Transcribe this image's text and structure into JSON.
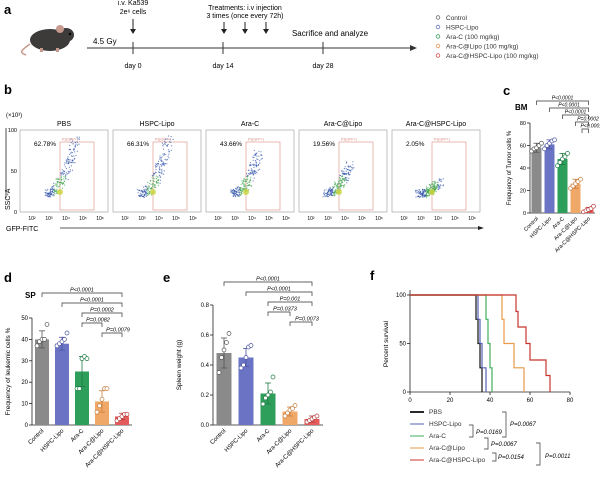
{
  "panel_labels": {
    "a": "a",
    "b": "b",
    "c": "c",
    "d": "d",
    "e": "e",
    "f": "f"
  },
  "timeline": {
    "injection_label_1": "i.v. Ka539",
    "injection_label_2": "2e⁶ cells",
    "irradiation": "4.5 Gy",
    "treatment_label_1": "Treatments: i.v injection",
    "treatment_label_2": "3 times (once every 72h)",
    "endpoint": "Sacrifice and analyze",
    "days": [
      "day 0",
      "day 14",
      "day 28"
    ]
  },
  "legend": {
    "items": [
      {
        "label": "Control",
        "color": "#6e6e6e"
      },
      {
        "label": "HSPC-Lipo",
        "color": "#6b74c4"
      },
      {
        "label": "Ara-C  (100 mg/kg)",
        "color": "#39a062"
      },
      {
        "label": "Ara-C@Lipo  (100 mg/kg)",
        "color": "#e79a55"
      },
      {
        "label": "Ara-C@HSPC-Lipo  (100 mg/kg)",
        "color": "#d9534f"
      }
    ]
  },
  "chart_data": [
    {
      "id": "b",
      "type": "scatter",
      "title": "Flow cytometry",
      "xlabel": "GFP-FITC",
      "ylabel": "SSC-A",
      "y_unit": "(×10³)",
      "yticks": [
        "0",
        "50",
        "100"
      ],
      "xticks": [
        "10²",
        "10³",
        "10⁴",
        "10⁵",
        "10⁶"
      ],
      "gate_label": "P3(GFP+)",
      "panels": [
        {
          "name": "PBS",
          "percent": "62.78%",
          "spread": 1.0
        },
        {
          "name": "HSPC-Lipo",
          "percent": "66.31%",
          "spread": 1.0
        },
        {
          "name": "Ara-C",
          "percent": "43.66%",
          "spread": 0.75
        },
        {
          "name": "Ara-C@Lipo",
          "percent": "19.56%",
          "spread": 0.55
        },
        {
          "name": "Ara-C@HSPC-Lipo",
          "percent": "2.05%",
          "spread": 0.2
        }
      ]
    },
    {
      "id": "c",
      "type": "bar",
      "title": "BM",
      "ylabel": "Frequency of Tumor cells %",
      "ylim": [
        0,
        80
      ],
      "yticks": [
        0,
        20,
        40,
        60,
        80
      ],
      "categories": [
        "Control",
        "HSPC-Lipo",
        "Ara-C",
        "Ara-C@Lipo",
        "Ara-C@HSPC-Lipo"
      ],
      "values": [
        58,
        61,
        48,
        26,
        3
      ],
      "errors": [
        4,
        4,
        5,
        4,
        2
      ],
      "points": [
        [
          55,
          57,
          58,
          60,
          62
        ],
        [
          57,
          60,
          62,
          64,
          65
        ],
        [
          42,
          45,
          48,
          50,
          53
        ],
        [
          22,
          24,
          26,
          28,
          30
        ],
        [
          1,
          2,
          3,
          4,
          6
        ]
      ],
      "comparisons": [
        {
          "from": 0,
          "to": 4,
          "label": "P<0.0001"
        },
        {
          "from": 1,
          "to": 4,
          "label": "P<0.0001"
        },
        {
          "from": 2,
          "to": 4,
          "label": "P<0.0001"
        },
        {
          "from": 3,
          "to": 4,
          "label": "P=0.0002"
        },
        {
          "from": 3.5,
          "to": 4,
          "label": "P<0.0001"
        }
      ]
    },
    {
      "id": "d",
      "type": "bar",
      "title": "SP",
      "ylabel": "Frequency of leukemic cells %",
      "ylim": [
        0,
        50
      ],
      "yticks": [
        0,
        10,
        20,
        30,
        40,
        50
      ],
      "categories": [
        "Control",
        "HSPC-Lipo",
        "Ara-C",
        "Ara-C@Lipo",
        "Ara-C@HSPC-Lipo"
      ],
      "values": [
        40,
        38,
        25,
        11,
        4
      ],
      "errors": [
        4,
        3,
        7,
        5,
        1.5
      ],
      "points": [
        [
          37,
          39,
          40,
          40,
          47
        ],
        [
          37,
          38,
          39,
          40,
          43
        ],
        [
          17,
          17,
          31,
          32,
          31
        ],
        [
          6,
          9,
          12,
          17,
          17
        ],
        [
          2,
          3,
          4,
          5,
          5
        ]
      ],
      "comparisons": [
        {
          "from": 0,
          "to": 4,
          "label": "P<0.0001"
        },
        {
          "from": 1,
          "to": 4,
          "label": "P<0.0001"
        },
        {
          "from": 2,
          "to": 4,
          "label": "P=0.0002"
        },
        {
          "from": 2,
          "to": 3,
          "label": "P=0.0082"
        },
        {
          "from": 3,
          "to": 4,
          "label": "P=0.0079"
        }
      ]
    },
    {
      "id": "e",
      "type": "bar",
      "title": "",
      "ylabel": "Spleen weight (g)",
      "ylim": [
        0,
        0.8
      ],
      "yticks": [
        0.0,
        0.2,
        0.4,
        0.6,
        0.8
      ],
      "categories": [
        "Control",
        "HSPC-Lipo",
        "Ara-C",
        "Ara-C@Lipo",
        "Ara-C@HSPC-Lipo"
      ],
      "values": [
        0.48,
        0.45,
        0.21,
        0.09,
        0.04
      ],
      "errors": [
        0.1,
        0.06,
        0.07,
        0.03,
        0.02
      ],
      "points": [
        [
          0.35,
          0.45,
          0.5,
          0.55,
          0.61
        ],
        [
          0.38,
          0.4,
          0.45,
          0.52,
          0.53
        ],
        [
          0.14,
          0.18,
          0.2,
          0.22,
          0.32
        ],
        [
          0.06,
          0.08,
          0.1,
          0.11,
          0.13
        ],
        [
          0.02,
          0.03,
          0.04,
          0.05,
          0.06
        ]
      ],
      "comparisons": [
        {
          "from": 0,
          "to": 4,
          "label": "P<0.0001"
        },
        {
          "from": 1,
          "to": 4,
          "label": "P<0.0001"
        },
        {
          "from": 2,
          "to": 4,
          "label": "P=0.001"
        },
        {
          "from": 2,
          "to": 3,
          "label": "P=0.0373"
        },
        {
          "from": 3,
          "to": 4,
          "label": "P=0.0073"
        }
      ]
    },
    {
      "id": "f",
      "type": "line",
      "title": "",
      "xlabel": "",
      "ylabel": "Percent survival",
      "xlim": [
        0,
        80
      ],
      "ylim": [
        0,
        100
      ],
      "xticks": [
        0,
        20,
        40,
        60,
        80
      ],
      "yticks": [
        0,
        50,
        100
      ],
      "series": [
        {
          "name": "PBS",
          "color": "#111111",
          "steps": [
            [
              0,
              100
            ],
            [
              33,
              100
            ],
            [
              33,
              75
            ],
            [
              34,
              75
            ],
            [
              34,
              50
            ],
            [
              35,
              50
            ],
            [
              35,
              25
            ],
            [
              36,
              25
            ],
            [
              36,
              0
            ]
          ]
        },
        {
          "name": "HSPC-Lipo",
          "color": "#5560b8",
          "steps": [
            [
              0,
              100
            ],
            [
              34,
              100
            ],
            [
              34,
              75
            ],
            [
              35,
              75
            ],
            [
              35,
              50
            ],
            [
              36,
              50
            ],
            [
              36,
              25
            ],
            [
              38,
              25
            ],
            [
              38,
              0
            ]
          ]
        },
        {
          "name": "Ara-C",
          "color": "#3fae5e",
          "steps": [
            [
              0,
              100
            ],
            [
              38,
              100
            ],
            [
              38,
              75
            ],
            [
              39,
              75
            ],
            [
              39,
              50
            ],
            [
              40,
              50
            ],
            [
              40,
              25
            ],
            [
              41,
              25
            ],
            [
              41,
              0
            ]
          ]
        },
        {
          "name": "Ara-C@Lipo",
          "color": "#e69a4a",
          "steps": [
            [
              0,
              100
            ],
            [
              46,
              100
            ],
            [
              46,
              75
            ],
            [
              47,
              75
            ],
            [
              47,
              50
            ],
            [
              52,
              50
            ],
            [
              52,
              25
            ],
            [
              57,
              25
            ],
            [
              57,
              0
            ]
          ]
        },
        {
          "name": "Ara-C@HSPC-Lipo",
          "color": "#c8352f",
          "steps": [
            [
              0,
              100
            ],
            [
              53,
              100
            ],
            [
              53,
              83
            ],
            [
              54,
              83
            ],
            [
              54,
              67
            ],
            [
              58,
              67
            ],
            [
              58,
              50
            ],
            [
              60,
              50
            ],
            [
              60,
              33
            ],
            [
              68,
              33
            ],
            [
              68,
              17
            ],
            [
              70,
              17
            ],
            [
              70,
              0
            ]
          ]
        }
      ],
      "comparisons": [
        {
          "label": "P=0.0067"
        },
        {
          "label": "P=0.0169"
        },
        {
          "label": "P=0.0067"
        },
        {
          "label": "P=0.0154"
        },
        {
          "label": "P=0.0011"
        }
      ]
    }
  ],
  "bar_colors": [
    "#8a8a8a",
    "#6b74c4",
    "#2e9e5b",
    "#f0a868",
    "#e35b5b"
  ],
  "bar_dark": [
    "#555555",
    "#4a52a0",
    "#1f7a43",
    "#c77d3d",
    "#b83a3a"
  ]
}
